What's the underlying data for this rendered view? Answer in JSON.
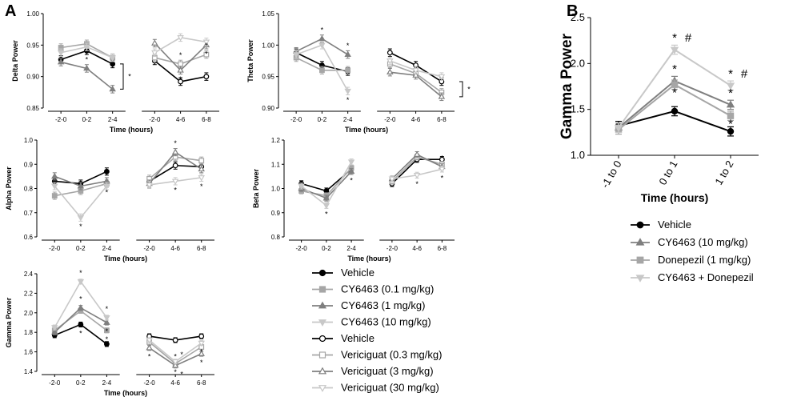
{
  "panel_labels": {
    "a": "A",
    "b": "B"
  },
  "series_styles": [
    {
      "name": "Vehicle",
      "color": "#000000",
      "marker": "circle",
      "filled": true
    },
    {
      "name": "CY6463 (0.1 mg/kg)",
      "color": "#a6a6a6",
      "marker": "square",
      "filled": true
    },
    {
      "name": "CY6463 (1 mg/kg)",
      "color": "#7f7f7f",
      "marker": "triangle-up",
      "filled": true
    },
    {
      "name": "CY6463 (10 mg/kg)",
      "color": "#c8c8c8",
      "marker": "triangle-down",
      "filled": true
    },
    {
      "name": "Vehicle",
      "color": "#000000",
      "marker": "circle",
      "filled": false
    },
    {
      "name": "Vericiguat (0.3 mg/kg)",
      "color": "#a6a6a6",
      "marker": "square",
      "filled": false
    },
    {
      "name": "Vericiguat (3 mg/kg)",
      "color": "#7f7f7f",
      "marker": "triangle-up",
      "filled": false
    },
    {
      "name": "Vericiguat (30 mg/kg)",
      "color": "#c8c8c8",
      "marker": "triangle-down",
      "filled": false
    }
  ],
  "chart_data": [
    {
      "id": "delta",
      "type": "line",
      "ylabel": "Delta Power",
      "xlabel": "Time (hours)",
      "ylim": [
        0.85,
        1.0
      ],
      "yticks": [
        "0.85",
        "0.90",
        "0.95",
        "1.00"
      ],
      "left_categories": [
        "-2-0",
        "0-2",
        "2-4"
      ],
      "right_categories": [
        "-2-0",
        "4-6",
        "6-8"
      ],
      "series_left": [
        [
          0.927,
          0.941,
          0.92
        ],
        [
          0.946,
          0.952,
          0.93
        ],
        [
          0.923,
          0.913,
          0.88
        ],
        [
          0.938,
          0.947,
          0.93
        ]
      ],
      "series_right": [
        [
          0.925,
          0.892,
          0.9
        ],
        [
          0.93,
          0.92,
          0.935
        ],
        [
          0.953,
          0.91,
          0.95
        ],
        [
          0.938,
          0.962,
          0.955
        ]
      ],
      "err": 0.006,
      "annotations": [
        "*",
        "*",
        "*",
        "*",
        "*",
        "*"
      ]
    },
    {
      "id": "theta",
      "type": "line",
      "ylabel": "Theta Power",
      "xlabel": "Time (hours)",
      "ylim": [
        0.9,
        1.05
      ],
      "yticks": [
        "0.90",
        "0.95",
        "1.00",
        "1.05"
      ],
      "left_categories": [
        "-2-0",
        "0-2",
        "2-4"
      ],
      "right_categories": [
        "-2-0",
        "4-6",
        "6-8"
      ],
      "series_left": [
        [
          0.988,
          0.968,
          0.958
        ],
        [
          0.98,
          0.96,
          0.96
        ],
        [
          0.99,
          1.01,
          0.985
        ],
        [
          0.985,
          1.0,
          0.927
        ]
      ],
      "series_right": [
        [
          0.988,
          0.968,
          0.942
        ],
        [
          0.97,
          0.955,
          0.925
        ],
        [
          0.957,
          0.952,
          0.918
        ],
        [
          0.975,
          0.96,
          0.95
        ]
      ],
      "err": 0.006,
      "annotations": [
        "*",
        "*",
        "*",
        "*"
      ]
    },
    {
      "id": "alpha",
      "type": "line",
      "ylabel": "Alpha Power",
      "xlabel": "Time (hours)",
      "ylim": [
        0.6,
        1.0
      ],
      "yticks": [
        "0.6",
        "0.7",
        "0.8",
        "0.9",
        "1.0"
      ],
      "left_categories": [
        "-2-0",
        "0-2",
        "2-4"
      ],
      "right_categories": [
        "-2-0",
        "4-6",
        "6-8"
      ],
      "series_left": [
        [
          0.83,
          0.82,
          0.87
        ],
        [
          0.77,
          0.79,
          0.82
        ],
        [
          0.85,
          0.81,
          0.83
        ],
        [
          0.81,
          0.68,
          0.81
        ]
      ],
      "series_right": [
        [
          0.83,
          0.895,
          0.89
        ],
        [
          0.84,
          0.93,
          0.915
        ],
        [
          0.82,
          0.95,
          0.88
        ],
        [
          0.815,
          0.83,
          0.845
        ]
      ],
      "err": 0.015,
      "annotations": [
        "*",
        "*",
        "*",
        "*",
        "*",
        "*"
      ]
    },
    {
      "id": "beta",
      "type": "line",
      "ylabel": "Beta Power",
      "xlabel": "Time (hours)",
      "ylim": [
        0.8,
        1.2
      ],
      "yticks": [
        "0.8",
        "0.9",
        "1.0",
        "1.1",
        "1.2"
      ],
      "left_categories": [
        "-2-0",
        "0-2",
        "2-4"
      ],
      "right_categories": [
        "-2-0",
        "4-6",
        "6-8"
      ],
      "series_left": [
        [
          1.02,
          0.99,
          1.08
        ],
        [
          0.99,
          0.97,
          1.085
        ],
        [
          1.0,
          0.96,
          1.07
        ],
        [
          1.01,
          0.93,
          1.11
        ]
      ],
      "series_right": [
        [
          1.02,
          1.12,
          1.12
        ],
        [
          1.03,
          1.13,
          1.1
        ],
        [
          1.04,
          1.14,
          1.09
        ],
        [
          1.04,
          1.055,
          1.08
        ]
      ],
      "err": 0.012,
      "annotations": [
        "*",
        "*",
        "*",
        "*",
        "*"
      ]
    },
    {
      "id": "gamma-a",
      "type": "line",
      "ylabel": "Gamma Power",
      "xlabel": "Time (hours)",
      "ylim": [
        1.4,
        2.4
      ],
      "yticks": [
        "1.4",
        "1.6",
        "1.8",
        "2.0",
        "2.2",
        "2.4"
      ],
      "left_categories": [
        "-2-0",
        "0-2",
        "2-4"
      ],
      "right_categories": [
        "-2-0",
        "4-6",
        "6-8"
      ],
      "series_left": [
        [
          1.77,
          1.88,
          1.68
        ],
        [
          1.82,
          2.02,
          1.82
        ],
        [
          1.8,
          2.05,
          1.9
        ],
        [
          1.85,
          2.32,
          1.95
        ]
      ],
      "series_right": [
        [
          1.76,
          1.72,
          1.76
        ],
        [
          1.7,
          1.48,
          1.65
        ],
        [
          1.64,
          1.46,
          1.58
        ],
        [
          1.72,
          1.5,
          1.69
        ]
      ],
      "err": 0.025,
      "annotations": [
        "*",
        "*",
        "*",
        "*",
        "*",
        "*",
        "*",
        "*",
        "*",
        "*",
        "*",
        "*",
        "*",
        "*",
        "#",
        "#"
      ]
    },
    {
      "id": "gamma-b",
      "type": "line",
      "ylabel": "Gamma Power",
      "xlabel": "Time (hours)",
      "ylim": [
        1.0,
        2.5
      ],
      "yticks": [
        "1.0",
        "1.5",
        "2.0",
        "2.5"
      ],
      "categories": [
        "-1 to 0",
        "0 to 1",
        "1 to 2"
      ],
      "series": [
        {
          "name": "Vehicle",
          "values": [
            1.32,
            1.48,
            1.26
          ]
        },
        {
          "name": "CY6463 (10 mg/kg)",
          "values": [
            1.3,
            1.81,
            1.55
          ]
        },
        {
          "name": "Donepezil (1 mg/kg)",
          "values": [
            1.28,
            1.77,
            1.43
          ]
        },
        {
          "name": "CY6463 + Donepezil",
          "values": [
            1.3,
            2.15,
            1.76
          ]
        }
      ],
      "err": 0.05,
      "annotations": [
        "*",
        "#",
        "*",
        "*",
        "*",
        "#",
        "*",
        "*"
      ]
    }
  ],
  "legend_a": {
    "items": [
      "Vehicle",
      "CY6463 (0.1 mg/kg)",
      "CY6463 (1 mg/kg)",
      "CY6463 (10 mg/kg)",
      "Vehicle",
      "Vericiguat (0.3 mg/kg)",
      "Vericiguat (3 mg/kg)",
      "Vericiguat (30 mg/kg)"
    ]
  },
  "legend_b": {
    "items": [
      "Vehicle",
      "CY6463 (10 mg/kg)",
      "Donepezil (1 mg/kg)",
      "CY6463 + Donepezil"
    ]
  }
}
